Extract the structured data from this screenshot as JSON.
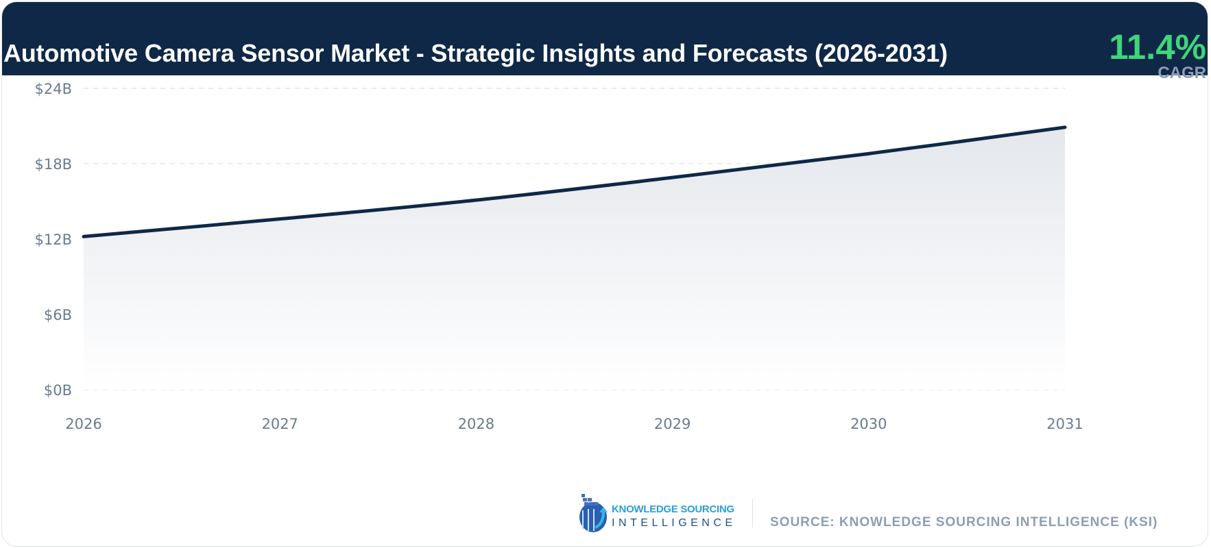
{
  "header": {
    "title": "Automotive Camera Sensor Market - Strategic Insights and Forecasts (2026-2031)",
    "cagr_value": "11.4%",
    "cagr_label": "CAGR"
  },
  "colors": {
    "header_bg": "#0f2847",
    "line": "#0f2847",
    "cagr": "#3ed67a",
    "muted": "#8e9db3"
  },
  "chart_data": {
    "type": "area",
    "title": "",
    "xlabel": "",
    "ylabel": "",
    "categories": [
      "2026",
      "2027",
      "2028",
      "2029",
      "2030",
      "2031"
    ],
    "series": [
      {
        "values": [
          12.2,
          13.6,
          15.1,
          16.9,
          18.8,
          20.9
        ]
      }
    ],
    "ylim": [
      0,
      24
    ],
    "yticks": [
      0,
      6,
      12,
      18,
      24
    ],
    "ytick_labels": [
      "$0B",
      "$6B",
      "$12B",
      "$18B",
      "$24B"
    ],
    "grid": true,
    "legend": "none"
  },
  "footer": {
    "logo_line1": "KNOWLEDGE SOURCING",
    "logo_line2": "INTELLIGENCE",
    "source": "SOURCE: KNOWLEDGE SOURCING INTELLIGENCE (KSI)"
  }
}
